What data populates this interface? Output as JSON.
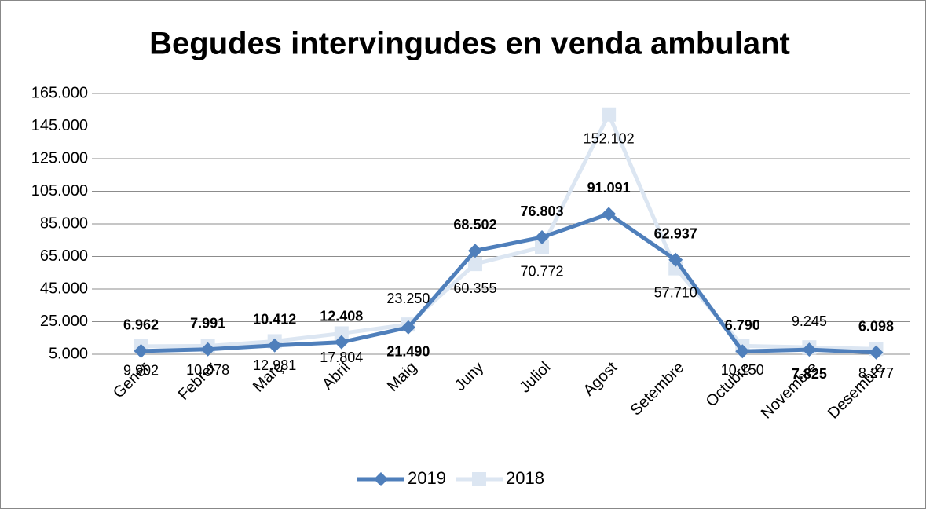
{
  "chart_data": {
    "type": "line",
    "title": "Begudes intervingudes en venda ambulant",
    "categories": [
      "Gener",
      "Febrer",
      "Març",
      "Abril",
      "Maig",
      "Juny",
      "Juliol",
      "Agost",
      "Setembre",
      "Octubre",
      "Novembre",
      "Desembre"
    ],
    "series": [
      {
        "name": "2019",
        "color": "#4f7fbb",
        "values": [
          6962,
          7991,
          10412,
          12408,
          21490,
          68502,
          76803,
          91091,
          62937,
          6790,
          7825,
          6098
        ],
        "value_labels": [
          "6.962",
          "7.991",
          "10.412",
          "12.408",
          "21.490",
          "68.502",
          "76.803",
          "91.091",
          "62.937",
          "6.790",
          "7.825",
          "6.098"
        ]
      },
      {
        "name": "2018",
        "color": "#dce6f2",
        "values": [
          9902,
          10078,
          12981,
          17804,
          23250,
          60355,
          70772,
          152102,
          57710,
          10150,
          9245,
          8277
        ],
        "value_labels": [
          "9.902",
          "10.078",
          "12.981",
          "17.804",
          "23.250",
          "60.355",
          "70.772",
          "152.102",
          "57.710",
          "10.150",
          "9.245",
          "8.277"
        ]
      }
    ],
    "ylim": [
      5000,
      165000
    ],
    "yticks": [
      {
        "value": 5000,
        "label": "5.000"
      },
      {
        "value": 25000,
        "label": "25.000"
      },
      {
        "value": 45000,
        "label": "45.000"
      },
      {
        "value": 65000,
        "label": "65.000"
      },
      {
        "value": 85000,
        "label": "85.000"
      },
      {
        "value": 105000,
        "label": "105.000"
      },
      {
        "value": 125000,
        "label": "125.000"
      },
      {
        "value": 145000,
        "label": "145.000"
      },
      {
        "value": 165000,
        "label": "165.000"
      }
    ],
    "grid": true,
    "legend": "bottom"
  }
}
